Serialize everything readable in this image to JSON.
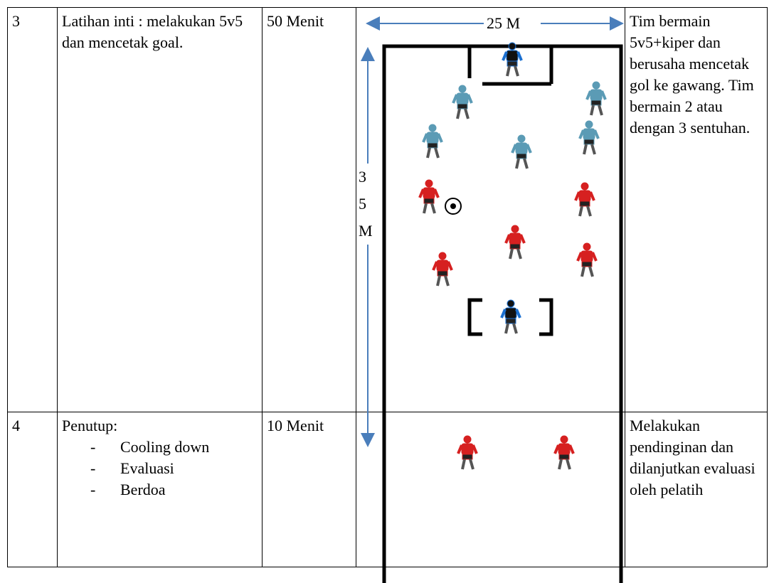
{
  "table": {
    "rows": [
      {
        "no": "3",
        "activity": {
          "title": "Latihan inti : melakukan 5v5 dan mencetak goal.",
          "items": []
        },
        "time": "50 Menit",
        "description": "Tim bermain 5v5+kiper dan berusaha mencetak gol ke gawang. Tim bermain 2 atau dengan 3 sentuhan."
      },
      {
        "no": "4",
        "activity": {
          "title": "Penutup:",
          "items": [
            "Cooling down",
            "Evaluasi",
            "Berdoa"
          ]
        },
        "time": "10 Menit",
        "description": "Melakukan pendinginan dan dilanjutkan evaluasi oleh pelatih"
      }
    ]
  },
  "diagram": {
    "width_label": "25 M",
    "length_label": "35 M"
  }
}
